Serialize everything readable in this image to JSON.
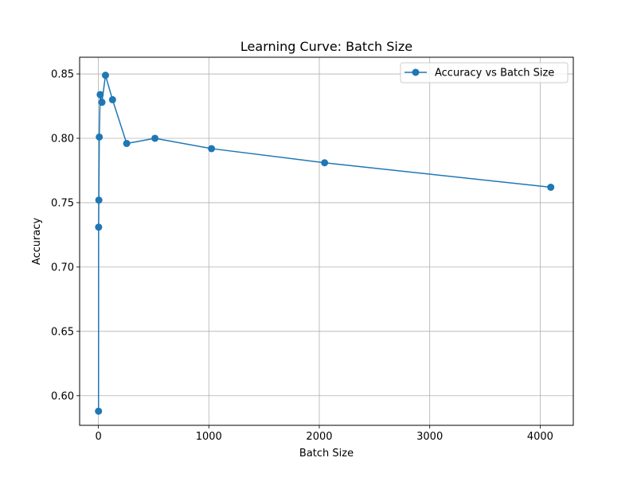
{
  "chart_data": {
    "type": "line",
    "title": "Learning Curve: Batch Size",
    "xlabel": "Batch Size",
    "ylabel": "Accuracy",
    "xlim": [
      -170,
      4300
    ],
    "ylim": [
      0.577,
      0.863
    ],
    "x_ticks": [
      0,
      1000,
      2000,
      3000,
      4000
    ],
    "x_tick_labels": [
      "0",
      "1000",
      "2000",
      "3000",
      "4000"
    ],
    "y_ticks": [
      0.6,
      0.65,
      0.7,
      0.75,
      0.8,
      0.85
    ],
    "y_tick_labels": [
      "0.60",
      "0.65",
      "0.70",
      "0.75",
      "0.80",
      "0.85"
    ],
    "grid": true,
    "legend_position": "top-right",
    "series": [
      {
        "name": "Accuracy vs Batch Size",
        "color": "#1f77b4",
        "marker": "circle",
        "x": [
          1,
          2,
          4,
          8,
          16,
          32,
          64,
          128,
          256,
          512,
          1024,
          2048,
          4096
        ],
        "y": [
          0.588,
          0.731,
          0.752,
          0.801,
          0.834,
          0.828,
          0.849,
          0.83,
          0.796,
          0.8,
          0.792,
          0.781,
          0.762
        ]
      }
    ]
  }
}
